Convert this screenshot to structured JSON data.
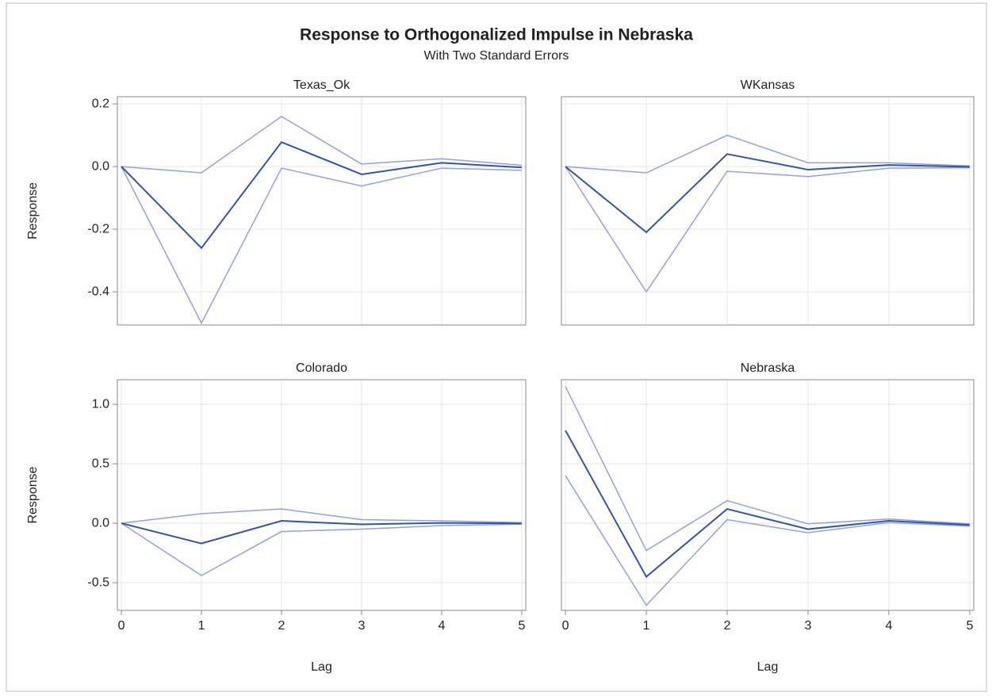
{
  "chart_data": {
    "type": "line",
    "title": "Response to Orthogonalized Impulse in Nebraska",
    "subtitle": "With Two Standard Errors",
    "xlabel": "Lag",
    "ylabel": "Response",
    "x": [
      0,
      1,
      2,
      3,
      4,
      5
    ],
    "xlim": [
      -0.05,
      5.05
    ],
    "xticks": [
      0,
      1,
      2,
      3,
      4,
      5
    ],
    "grid": true,
    "panels": [
      {
        "title": "Texas_Ok",
        "ylim": [
          -0.506,
          0.223
        ],
        "yticks": [
          0.2,
          {
            "value": 0,
            "label": "0.0"
          },
          -0.2,
          -0.4
        ],
        "series": [
          {
            "color": "#8fa3dc",
            "values": [
              0,
              -0.02,
              0.16,
              0.008,
              0.025,
              0.004
            ]
          },
          {
            "color": "#8fa3dc",
            "values": [
              0,
              -0.5,
              -0.005,
              -0.062,
              -0.005,
              -0.012
            ]
          },
          {
            "color": "#3454a8",
            "values": [
              0,
              -0.26,
              0.078,
              -0.025,
              0.012,
              -0.003
            ]
          }
        ]
      },
      {
        "title": "WKansas",
        "ylim": [
          -0.506,
          0.223
        ],
        "yticks": [
          0.2,
          {
            "value": 0,
            "label": "0.0"
          },
          -0.2,
          -0.4
        ],
        "series": [
          {
            "color": "#8fa3dc",
            "values": [
              0,
              -0.02,
              0.1,
              0.012,
              0.012,
              0.002
            ]
          },
          {
            "color": "#8fa3dc",
            "values": [
              0,
              -0.4,
              -0.015,
              -0.032,
              -0.005,
              -0.004
            ]
          },
          {
            "color": "#3454a8",
            "values": [
              0,
              -0.21,
              0.04,
              -0.01,
              0.005,
              -0.001
            ]
          }
        ]
      },
      {
        "title": "Colorado",
        "ylim": [
          -0.733,
          1.207
        ],
        "yticks": [
          {
            "value": 1,
            "label": "1.0"
          },
          0.5,
          {
            "value": 0,
            "label": "0.0"
          },
          -0.5
        ],
        "series": [
          {
            "color": "#8fa3dc",
            "values": [
              0,
              0.08,
              0.12,
              0.03,
              0.02,
              0.005
            ]
          },
          {
            "color": "#8fa3dc",
            "values": [
              0,
              -0.44,
              -0.07,
              -0.05,
              -0.02,
              -0.008
            ]
          },
          {
            "color": "#3454a8",
            "values": [
              0,
              -0.17,
              0.02,
              -0.01,
              0.003,
              -0.002
            ]
          }
        ]
      },
      {
        "title": "Nebraska",
        "ylim": [
          -0.733,
          1.207
        ],
        "yticks": [
          {
            "value": 1,
            "label": "1.0"
          },
          0.5,
          {
            "value": 0,
            "label": "0.0"
          },
          -0.5
        ],
        "series": [
          {
            "color": "#8fa3dc",
            "values": [
              1.15,
              -0.23,
              0.19,
              -0.005,
              0.035,
              -0.005
            ]
          },
          {
            "color": "#8fa3dc",
            "values": [
              0.4,
              -0.69,
              0.03,
              -0.08,
              0.005,
              -0.025
            ]
          },
          {
            "color": "#3454a8",
            "values": [
              0.78,
              -0.45,
              0.12,
              -0.05,
              0.02,
              -0.015
            ]
          }
        ]
      }
    ]
  }
}
